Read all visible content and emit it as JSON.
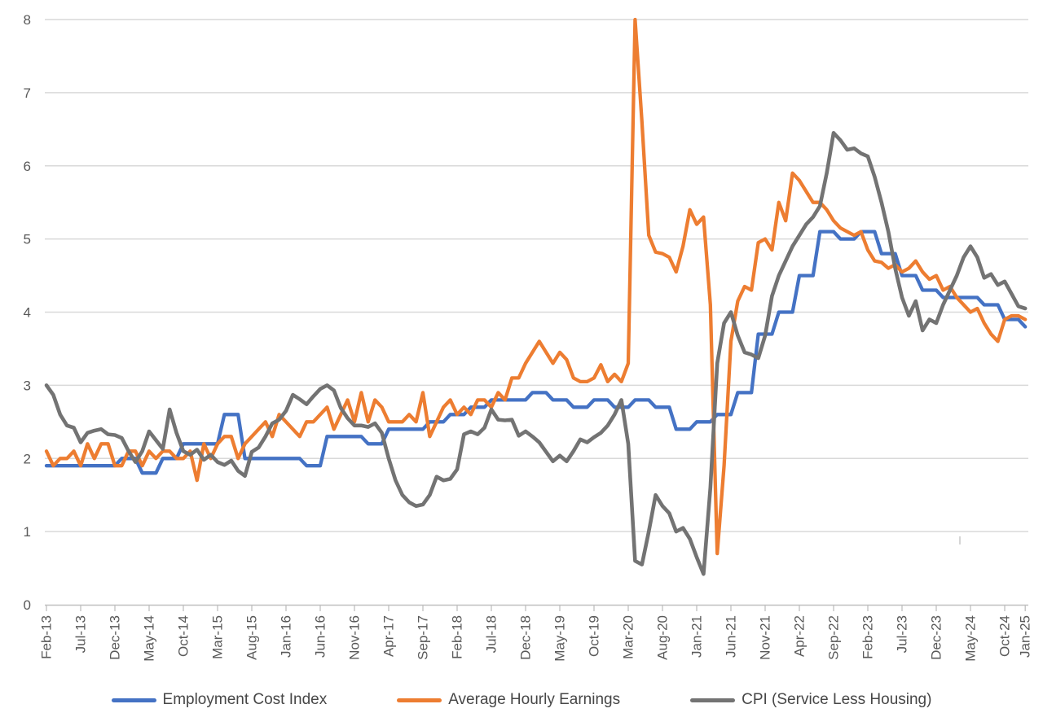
{
  "chart_data": {
    "type": "line",
    "frequency": "monthly",
    "x_start": "Feb-13",
    "x_end": "Jan-25",
    "grid": true,
    "legend_position": "bottom",
    "x_axis": {
      "tick_labels": [
        "Feb-13",
        "Jul-13",
        "Dec-13",
        "May-14",
        "Oct-14",
        "Mar-15",
        "Aug-15",
        "Jan-16",
        "Jun-16",
        "Nov-16",
        "Apr-17",
        "Sep-17",
        "Feb-18",
        "Jul-18",
        "Dec-18",
        "May-19",
        "Oct-19",
        "Mar-20",
        "Aug-20",
        "Jan-21",
        "Jun-21",
        "Nov-21",
        "Apr-22",
        "Sep-22",
        "Feb-23",
        "Jul-23",
        "Dec-23",
        "May-24",
        "Oct-24",
        "Jan-25"
      ],
      "tick_month_indices": [
        0,
        5,
        10,
        15,
        20,
        25,
        30,
        35,
        40,
        45,
        50,
        55,
        60,
        65,
        70,
        75,
        80,
        85,
        90,
        95,
        100,
        105,
        110,
        115,
        120,
        125,
        130,
        135,
        140,
        143
      ]
    },
    "y_axis": {
      "min": 0,
      "max": 8,
      "tick_labels": [
        "0",
        "1",
        "2",
        "3",
        "4",
        "5",
        "6",
        "7",
        "8"
      ]
    },
    "colors": {
      "eci_blue": "#4472C4",
      "ahe_orange": "#ED7D31",
      "cpi_gray": "#737373",
      "gridline": "#D9D9D9",
      "axis_line": "#BFBFBF",
      "tick_text": "#595959"
    },
    "series": [
      {
        "name": "Employment Cost Index",
        "color": "#4472C4",
        "values": [
          1.9,
          1.9,
          1.9,
          1.9,
          1.9,
          1.9,
          1.9,
          1.9,
          1.9,
          1.9,
          1.9,
          2.0,
          2.0,
          2.0,
          1.8,
          1.8,
          1.8,
          2.0,
          2.0,
          2.0,
          2.2,
          2.2,
          2.2,
          2.2,
          2.2,
          2.2,
          2.6,
          2.6,
          2.6,
          2.0,
          2.0,
          2.0,
          2.0,
          2.0,
          2.0,
          2.0,
          2.0,
          2.0,
          1.9,
          1.9,
          1.9,
          2.3,
          2.3,
          2.3,
          2.3,
          2.3,
          2.3,
          2.2,
          2.2,
          2.2,
          2.4,
          2.4,
          2.4,
          2.4,
          2.4,
          2.4,
          2.5,
          2.5,
          2.5,
          2.6,
          2.6,
          2.6,
          2.7,
          2.7,
          2.7,
          2.8,
          2.8,
          2.8,
          2.8,
          2.8,
          2.8,
          2.9,
          2.9,
          2.9,
          2.8,
          2.8,
          2.8,
          2.7,
          2.7,
          2.7,
          2.8,
          2.8,
          2.8,
          2.7,
          2.7,
          2.7,
          2.8,
          2.8,
          2.8,
          2.7,
          2.7,
          2.7,
          2.4,
          2.4,
          2.4,
          2.5,
          2.5,
          2.5,
          2.6,
          2.6,
          2.6,
          2.9,
          2.9,
          2.9,
          3.7,
          3.7,
          3.7,
          4.0,
          4.0,
          4.0,
          4.5,
          4.5,
          4.5,
          5.1,
          5.1,
          5.1,
          5.0,
          5.0,
          5.0,
          5.1,
          5.1,
          5.1,
          4.8,
          4.8,
          4.8,
          4.5,
          4.5,
          4.5,
          4.3,
          4.3,
          4.3,
          4.2,
          4.2,
          4.2,
          4.2,
          4.2,
          4.2,
          4.1,
          4.1,
          4.1,
          3.9,
          3.9,
          3.9,
          3.8
        ]
      },
      {
        "name": "Average Hourly Earnings",
        "color": "#ED7D31",
        "values": [
          2.1,
          1.9,
          2.0,
          2.0,
          2.1,
          1.9,
          2.2,
          2.0,
          2.2,
          2.2,
          1.9,
          1.9,
          2.1,
          2.1,
          1.9,
          2.1,
          2.0,
          2.1,
          2.1,
          2.0,
          2.0,
          2.1,
          1.7,
          2.2,
          2.0,
          2.2,
          2.3,
          2.3,
          2.0,
          2.2,
          2.3,
          2.4,
          2.5,
          2.3,
          2.6,
          2.5,
          2.4,
          2.3,
          2.5,
          2.5,
          2.6,
          2.7,
          2.4,
          2.6,
          2.8,
          2.5,
          2.9,
          2.5,
          2.8,
          2.7,
          2.5,
          2.5,
          2.5,
          2.6,
          2.5,
          2.9,
          2.3,
          2.5,
          2.7,
          2.8,
          2.6,
          2.7,
          2.6,
          2.8,
          2.8,
          2.7,
          2.9,
          2.8,
          3.1,
          3.1,
          3.3,
          3.45,
          3.6,
          3.45,
          3.3,
          3.45,
          3.35,
          3.1,
          3.05,
          3.05,
          3.1,
          3.28,
          3.05,
          3.15,
          3.05,
          3.3,
          8.0,
          6.6,
          5.05,
          4.82,
          4.8,
          4.75,
          4.55,
          4.9,
          5.4,
          5.2,
          5.3,
          4.1,
          0.7,
          1.9,
          3.6,
          4.15,
          4.35,
          4.3,
          4.95,
          5.0,
          4.85,
          5.5,
          5.25,
          5.9,
          5.8,
          5.65,
          5.5,
          5.5,
          5.4,
          5.25,
          5.15,
          5.1,
          5.05,
          5.1,
          4.85,
          4.7,
          4.68,
          4.6,
          4.65,
          4.55,
          4.6,
          4.7,
          4.55,
          4.45,
          4.5,
          4.3,
          4.35,
          4.2,
          4.1,
          4.0,
          4.05,
          3.85,
          3.7,
          3.6,
          3.9,
          3.95,
          3.95,
          3.9
        ]
      },
      {
        "name": "CPI (Service Less Housing)",
        "color": "#737373",
        "values": [
          3.0,
          2.87,
          2.6,
          2.45,
          2.42,
          2.22,
          2.35,
          2.38,
          2.4,
          2.33,
          2.32,
          2.28,
          2.1,
          1.95,
          2.1,
          2.37,
          2.25,
          2.13,
          2.67,
          2.35,
          2.1,
          2.05,
          2.12,
          1.98,
          2.05,
          1.95,
          1.91,
          1.97,
          1.83,
          1.76,
          2.09,
          2.15,
          2.3,
          2.48,
          2.53,
          2.65,
          2.87,
          2.81,
          2.74,
          2.85,
          2.95,
          3.0,
          2.93,
          2.69,
          2.55,
          2.45,
          2.45,
          2.43,
          2.48,
          2.35,
          2.0,
          1.7,
          1.5,
          1.4,
          1.35,
          1.37,
          1.5,
          1.75,
          1.7,
          1.72,
          1.85,
          2.33,
          2.37,
          2.33,
          2.42,
          2.67,
          2.53,
          2.52,
          2.53,
          2.31,
          2.37,
          2.3,
          2.22,
          2.09,
          1.96,
          2.04,
          1.96,
          2.1,
          2.26,
          2.22,
          2.29,
          2.35,
          2.45,
          2.6,
          2.8,
          2.2,
          0.6,
          0.55,
          1.0,
          1.5,
          1.35,
          1.25,
          1.0,
          1.05,
          0.9,
          0.65,
          0.42,
          1.6,
          3.3,
          3.85,
          4.0,
          3.68,
          3.45,
          3.42,
          3.37,
          3.68,
          4.22,
          4.5,
          4.7,
          4.9,
          5.05,
          5.2,
          5.3,
          5.45,
          5.9,
          6.45,
          6.35,
          6.22,
          6.24,
          6.17,
          6.13,
          5.85,
          5.5,
          5.1,
          4.6,
          4.2,
          3.95,
          4.15,
          3.75,
          3.9,
          3.85,
          4.1,
          4.3,
          4.5,
          4.75,
          4.9,
          4.75,
          4.47,
          4.52,
          4.37,
          4.42,
          4.25,
          4.08,
          4.05
        ]
      }
    ]
  }
}
